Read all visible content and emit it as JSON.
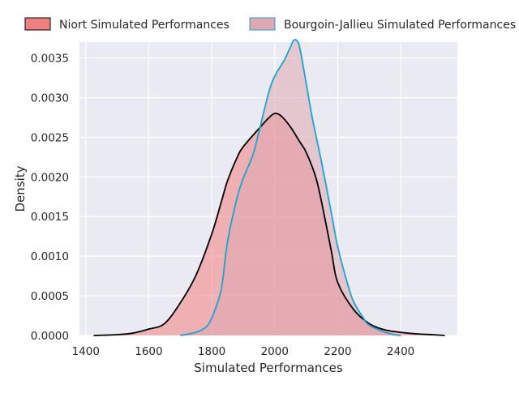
{
  "chart_data": {
    "type": "area",
    "title": "",
    "xlabel": "Simulated Performances",
    "ylabel": "Density",
    "xlim": [
      1380,
      2580
    ],
    "ylim": [
      0,
      0.0037
    ],
    "x_ticks": [
      1400,
      1600,
      1800,
      2000,
      2200,
      2400
    ],
    "x_tick_labels": [
      "1400",
      "1600",
      "1800",
      "2000",
      "2200",
      "2400"
    ],
    "y_ticks": [
      0,
      0.0005,
      0.001,
      0.0015,
      0.002,
      0.0025,
      0.003,
      0.0035
    ],
    "y_tick_labels": [
      "0.0000",
      "0.0005",
      "0.0010",
      "0.0015",
      "0.0020",
      "0.0025",
      "0.0030",
      "0.0035"
    ],
    "grid": true,
    "legend_position": "top",
    "series": [
      {
        "name": "Niort Simulated Performances",
        "fill_color": "#f08080",
        "line_color": "#000000",
        "x": [
          1425,
          1500,
          1550,
          1600,
          1650,
          1700,
          1750,
          1800,
          1830,
          1850,
          1880,
          1900,
          1950,
          1980,
          2000,
          2020,
          2050,
          2080,
          2100,
          2130,
          2150,
          2180,
          2200,
          2250,
          2300,
          2350,
          2400,
          2450,
          2500,
          2540
        ],
        "values": [
          0,
          1e-05,
          3e-05,
          8e-05,
          0.00015,
          0.00041,
          0.00076,
          0.00128,
          0.00168,
          0.00195,
          0.00224,
          0.00238,
          0.00261,
          0.00274,
          0.0028,
          0.00277,
          0.00263,
          0.00244,
          0.00231,
          0.002,
          0.00166,
          0.00106,
          0.00067,
          0.00033,
          0.00015,
          7e-05,
          4e-05,
          2e-05,
          1e-05,
          0
        ]
      },
      {
        "name": "Bourgoin-Jallieu Simulated Performances",
        "fill_color": "#dfa7b0",
        "line_color": "#1aa3cf",
        "x": [
          1700,
          1750,
          1780,
          1800,
          1830,
          1850,
          1880,
          1900,
          1930,
          1950,
          1980,
          2000,
          2030,
          2050,
          2060,
          2070,
          2080,
          2100,
          2120,
          2150,
          2180,
          2200,
          2230,
          2250,
          2280,
          2300,
          2350,
          2380,
          2400
        ],
        "values": [
          0,
          4e-05,
          0.0001,
          0.00022,
          0.00058,
          0.00118,
          0.00173,
          0.00198,
          0.00227,
          0.00257,
          0.00305,
          0.00327,
          0.00347,
          0.00364,
          0.00372,
          0.00372,
          0.00362,
          0.00318,
          0.00273,
          0.00216,
          0.00154,
          0.00112,
          0.00067,
          0.00043,
          0.00023,
          0.00013,
          4e-05,
          1e-05,
          0
        ]
      }
    ]
  }
}
